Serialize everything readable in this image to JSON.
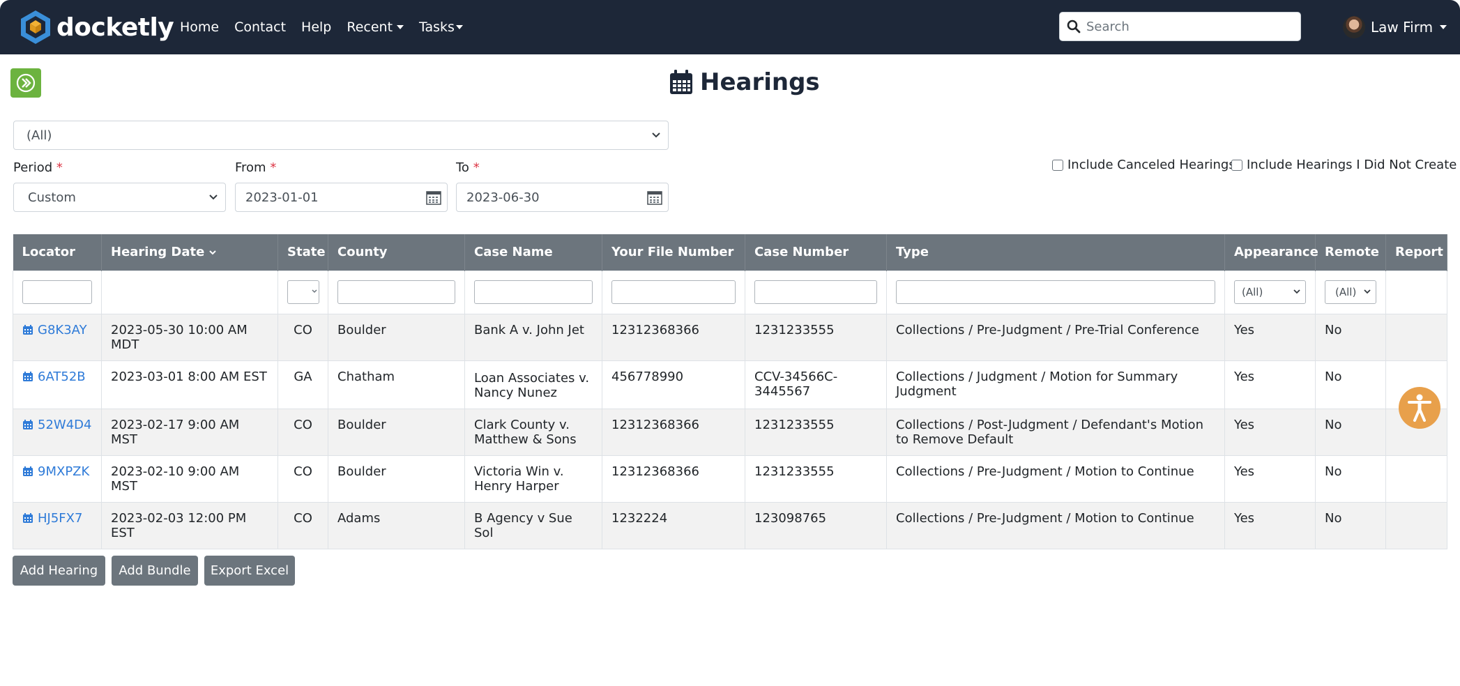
{
  "brand": {
    "name": "docketly"
  },
  "nav": {
    "home": "Home",
    "contact": "Contact",
    "help": "Help",
    "recent": "Recent",
    "tasks": "Tasks"
  },
  "search": {
    "placeholder": "Search",
    "value": ""
  },
  "user": {
    "name": "Law Firm"
  },
  "page": {
    "title": "Hearings"
  },
  "filters": {
    "top_select": "(All)",
    "period_label": "Period",
    "period_value": "Custom",
    "from_label": "From",
    "from_value": "2023-01-01",
    "to_label": "To",
    "to_value": "2023-06-30",
    "required_mark": "*",
    "include_canceled": "Include Canceled Hearings",
    "include_not_created": "Include Hearings I Did Not Create"
  },
  "table": {
    "headers": {
      "locator": "Locator",
      "hearing_date": "Hearing Date",
      "state": "State",
      "county": "County",
      "case_name": "Case Name",
      "file_number": "Your File Number",
      "case_number": "Case Number",
      "type": "Type",
      "appearance": "Appearance",
      "remote": "Remote",
      "report": "Report"
    },
    "filter_selects": {
      "appearance": "(All)",
      "remote": "(All)"
    },
    "rows": [
      {
        "locator": "G8K3AY",
        "hearing_date": "2023-05-30 10:00 AM MDT",
        "state": "CO",
        "county": "Boulder",
        "case_name": "Bank A v. John Jet",
        "file_number": "12312368366",
        "case_number": "1231233555",
        "type": "Collections / Pre-Judgment / Pre-Trial Conference",
        "appearance": "Yes",
        "remote": "No",
        "report": ""
      },
      {
        "locator": "6AT52B",
        "hearing_date": "2023-03-01 8:00 AM EST",
        "state": "GA",
        "county": "Chatham",
        "case_name": "Loan Associates v. Nancy Nunez",
        "file_number": "456778990",
        "case_number": "CCV-34566C-3445567",
        "type": "Collections / Judgment / Motion for Summary Judgment",
        "appearance": "Yes",
        "remote": "No",
        "report": ""
      },
      {
        "locator": "52W4D4",
        "hearing_date": "2023-02-17 9:00 AM MST",
        "state": "CO",
        "county": "Boulder",
        "case_name": "Clark County v. Matthew & Sons",
        "file_number": "12312368366",
        "case_number": "1231233555",
        "type": "Collections / Post-Judgment / Defendant's Motion to Remove Default",
        "appearance": "Yes",
        "remote": "No",
        "report": ""
      },
      {
        "locator": "9MXPZK",
        "hearing_date": "2023-02-10 9:00 AM MST",
        "state": "CO",
        "county": "Boulder",
        "case_name": "Victoria Win v. Henry Harper",
        "file_number": "12312368366",
        "case_number": "1231233555",
        "type": "Collections / Pre-Judgment / Motion to Continue",
        "appearance": "Yes",
        "remote": "No",
        "report": ""
      },
      {
        "locator": "HJ5FX7",
        "hearing_date": "2023-02-03 12:00 PM EST",
        "state": "CO",
        "county": "Adams",
        "case_name": "B Agency v Sue Sol",
        "file_number": "1232224",
        "case_number": "123098765",
        "type": "Collections / Pre-Judgment / Motion to Continue",
        "appearance": "Yes",
        "remote": "No",
        "report": ""
      }
    ]
  },
  "buttons": {
    "add_hearing": "Add Hearing",
    "add_bundle": "Add Bundle",
    "export_excel": "Export Excel"
  },
  "colors": {
    "navbar": "#1d2738",
    "header_row": "#6c757d",
    "link": "#2f7bd8",
    "toggle": "#6cb33f",
    "accessibility": "#e8a04b",
    "required": "#dc3545"
  }
}
